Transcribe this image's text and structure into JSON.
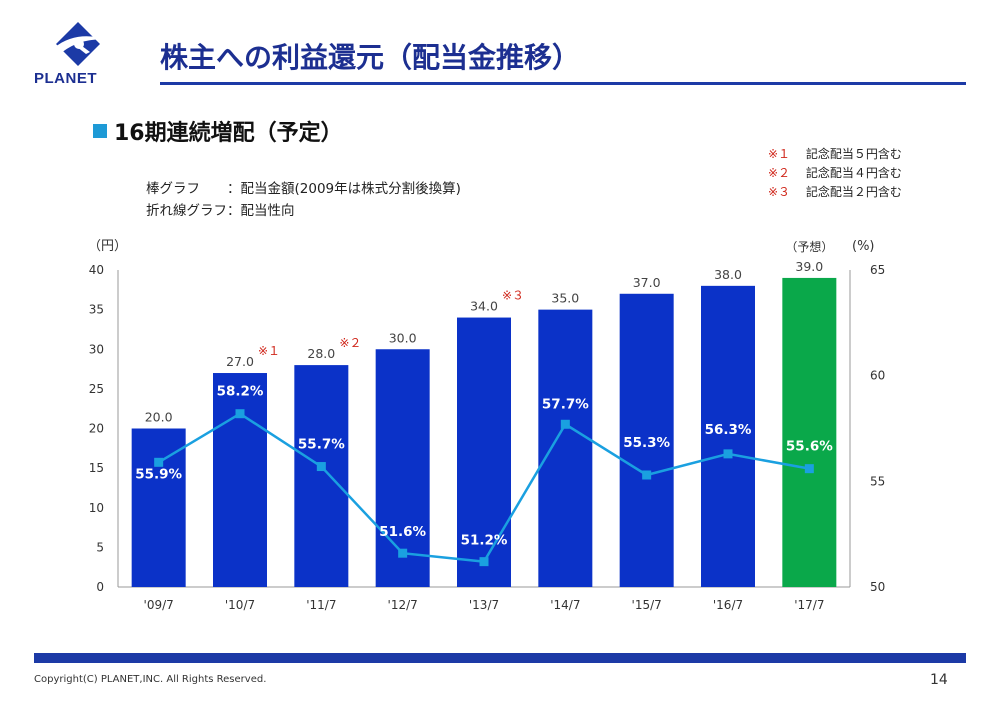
{
  "header": {
    "logo_text": "PLANET",
    "title": "株主への利益還元（配当金推移）"
  },
  "subtitle": "16期連続増配（予定）",
  "notes": [
    {
      "mark": "※１",
      "text": "記念配当５円含む"
    },
    {
      "mark": "※２",
      "text": "記念配当４円含む"
    },
    {
      "mark": "※３",
      "text": "記念配当２円含む"
    }
  ],
  "legend": [
    "棒グラフ　　：配当金額(2009年は株式分割後換算)",
    "折れ線グラフ：配当性向"
  ],
  "colors": {
    "bar": "#0b32c8",
    "bar_forecast": "#0aa84a",
    "line": "#1aa0e0",
    "title": "#1c2f91",
    "note_mark": "#d0281c"
  },
  "chart_data": {
    "type": "bar",
    "categories": [
      "'09/7",
      "'10/7",
      "'11/7",
      "'12/7",
      "'13/7",
      "'14/7",
      "'15/7",
      "'16/7",
      "'17/7"
    ],
    "y_left_label": "（円）",
    "y_right_label": "(%)",
    "ylim_left": [
      0,
      40
    ],
    "ylim_right": [
      50,
      65
    ],
    "yticks_left": [
      0,
      5,
      10,
      15,
      20,
      25,
      30,
      35,
      40
    ],
    "yticks_right": [
      50,
      55,
      60,
      65
    ],
    "series": [
      {
        "type": "bar",
        "axis": "left",
        "values": [
          20.0,
          27.0,
          28.0,
          30.0,
          34.0,
          35.0,
          37.0,
          38.0,
          39.0
        ],
        "labels": [
          "20.0",
          "27.0",
          "28.0",
          "30.0",
          "34.0",
          "35.0",
          "37.0",
          "38.0",
          "39.0"
        ],
        "forecast_index": 8
      },
      {
        "type": "line",
        "axis": "right",
        "values": [
          55.9,
          58.2,
          55.7,
          51.6,
          51.2,
          57.7,
          55.3,
          56.3,
          55.6
        ],
        "labels": [
          "55.9%",
          "58.2%",
          "55.7%",
          "51.6%",
          "51.2%",
          "57.7%",
          "55.3%",
          "56.3%",
          "55.6%"
        ]
      }
    ],
    "annotations": [
      {
        "index": 1,
        "text": "※１"
      },
      {
        "index": 2,
        "text": "※２"
      },
      {
        "index": 4,
        "text": "※３"
      },
      {
        "index": 8,
        "text": "（予想）"
      }
    ]
  },
  "footer": {
    "copyright": "Copyright(C) PLANET,INC. All Rights Reserved.",
    "page_number": "14"
  }
}
